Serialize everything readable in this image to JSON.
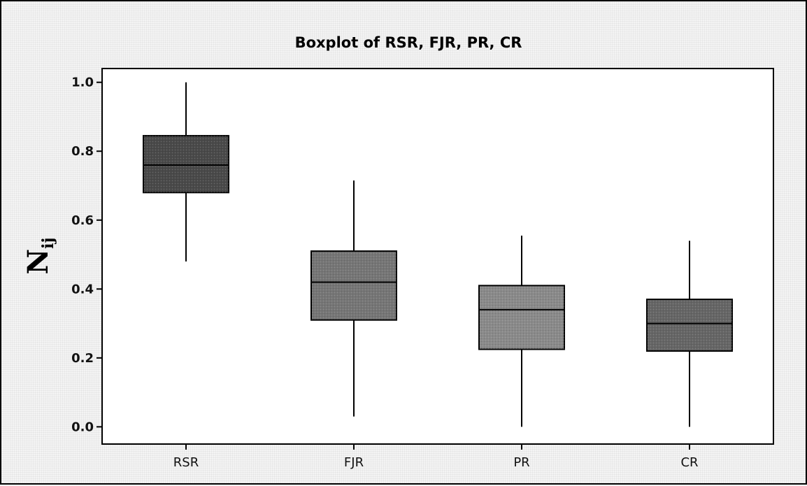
{
  "chart_data": {
    "type": "box",
    "title": "Boxplot of RSR, FJR, PR, CR",
    "xlabel": "",
    "ylabel": "N",
    "ylabel_subscript": "ij",
    "ylim": [
      -0.05,
      1.04
    ],
    "yticks": [
      "0.0",
      "0.2",
      "0.4",
      "0.6",
      "0.8",
      "1.0"
    ],
    "ytick_values": [
      0.0,
      0.2,
      0.4,
      0.6,
      0.8,
      1.0
    ],
    "grid": false,
    "categories": [
      "RSR",
      "FJR",
      "PR",
      "CR"
    ],
    "boxes": [
      {
        "category": "RSR",
        "min": 0.48,
        "q1": 0.68,
        "median": 0.76,
        "q3": 0.845,
        "max": 1.0,
        "color": "#4a4a4a"
      },
      {
        "category": "FJR",
        "min": 0.03,
        "q1": 0.31,
        "median": 0.42,
        "q3": 0.51,
        "max": 0.715,
        "color": "#767676"
      },
      {
        "category": "PR",
        "min": 0.0,
        "q1": 0.225,
        "median": 0.34,
        "q3": 0.41,
        "max": 0.555,
        "color": "#8a8a8a"
      },
      {
        "category": "CR",
        "min": 0.0,
        "q1": 0.22,
        "median": 0.3,
        "q3": 0.37,
        "max": 0.54,
        "color": "#666666"
      }
    ]
  }
}
